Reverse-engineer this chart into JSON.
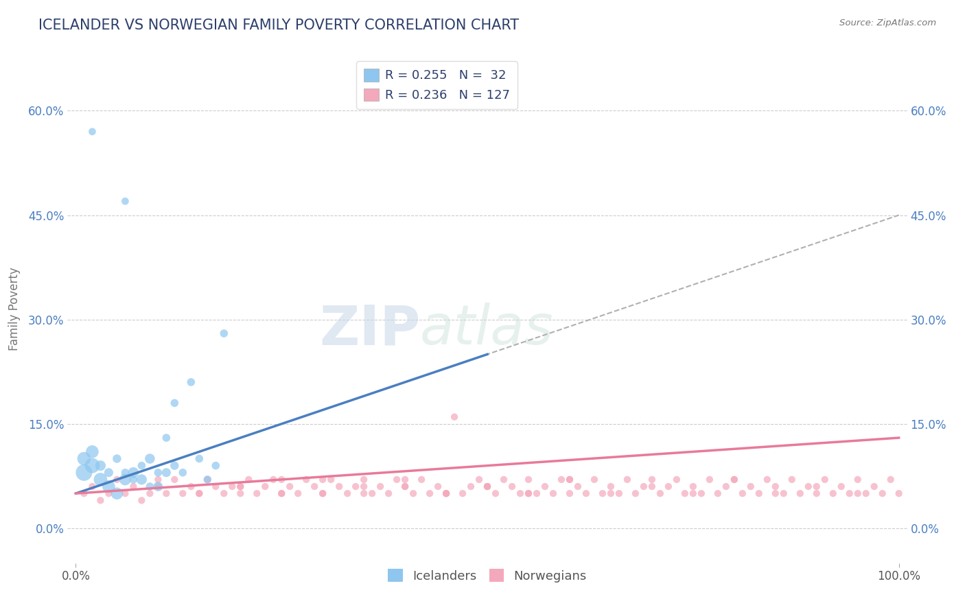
{
  "title": "ICELANDER VS NORWEGIAN FAMILY POVERTY CORRELATION CHART",
  "source": "Source: ZipAtlas.com",
  "ylabel": "Family Poverty",
  "ytick_labels": [
    "0.0%",
    "15.0%",
    "30.0%",
    "45.0%",
    "60.0%"
  ],
  "ytick_values": [
    0,
    15,
    30,
    45,
    60
  ],
  "xlim": [
    -1,
    101
  ],
  "ylim": [
    -5,
    68
  ],
  "watermark_zip": "ZIP",
  "watermark_atlas": "atlas",
  "legend_label1": "R = 0.255   N =  32",
  "legend_label2": "R = 0.236   N = 127",
  "icelandic_color": "#8ec6ef",
  "norwegian_color": "#f4a8bc",
  "icelandic_line_color": "#4a7fc1",
  "norwegian_line_color": "#e87a9a",
  "trend_line_color": "#b0b0b0",
  "background_color": "#ffffff",
  "grid_color": "#cccccc",
  "title_color": "#2c3e6b",
  "icelanders_label": "Icelanders",
  "norwegians_label": "Norwegians",
  "icelandic_scatter_x": [
    2,
    6,
    1,
    2,
    3,
    4,
    5,
    6,
    7,
    8,
    9,
    10,
    11,
    12,
    1,
    2,
    3,
    4,
    5,
    6,
    7,
    8,
    9,
    10,
    11,
    12,
    13,
    14,
    15,
    16,
    17,
    18
  ],
  "icelandic_scatter_y": [
    57,
    47,
    10,
    11,
    9,
    8,
    10,
    8,
    7,
    9,
    6,
    8,
    13,
    18,
    8,
    9,
    7,
    6,
    5,
    7,
    8,
    7,
    10,
    6,
    8,
    9,
    8,
    21,
    10,
    7,
    9,
    28
  ],
  "icelandic_scatter_s": [
    60,
    60,
    200,
    180,
    120,
    90,
    80,
    70,
    70,
    70,
    70,
    70,
    70,
    70,
    300,
    250,
    200,
    180,
    160,
    150,
    130,
    120,
    110,
    100,
    90,
    80,
    70,
    70,
    70,
    70,
    70,
    70
  ],
  "norwegian_scatter_x": [
    1,
    2,
    3,
    4,
    5,
    6,
    7,
    8,
    9,
    10,
    11,
    12,
    13,
    14,
    15,
    16,
    17,
    18,
    19,
    20,
    21,
    22,
    23,
    24,
    25,
    26,
    27,
    28,
    29,
    30,
    31,
    32,
    33,
    34,
    35,
    36,
    37,
    38,
    39,
    40,
    41,
    42,
    43,
    44,
    45,
    46,
    47,
    48,
    49,
    50,
    51,
    52,
    53,
    54,
    55,
    56,
    57,
    58,
    59,
    60,
    61,
    62,
    63,
    64,
    65,
    66,
    67,
    68,
    69,
    70,
    71,
    72,
    73,
    74,
    75,
    76,
    77,
    78,
    79,
    80,
    81,
    82,
    83,
    84,
    85,
    86,
    87,
    88,
    89,
    90,
    91,
    92,
    93,
    94,
    95,
    96,
    97,
    98,
    99,
    100,
    20,
    25,
    30,
    35,
    40,
    45,
    50,
    55,
    60,
    65,
    70,
    75,
    80,
    85,
    90,
    95,
    10,
    15,
    20,
    25,
    30,
    35,
    40,
    45,
    50,
    55,
    60
  ],
  "norwegian_scatter_y": [
    5,
    6,
    4,
    5,
    7,
    5,
    6,
    4,
    5,
    6,
    5,
    7,
    5,
    6,
    5,
    7,
    6,
    5,
    6,
    5,
    7,
    5,
    6,
    7,
    5,
    6,
    5,
    7,
    6,
    5,
    7,
    6,
    5,
    6,
    7,
    5,
    6,
    5,
    7,
    6,
    5,
    7,
    5,
    6,
    5,
    16,
    5,
    6,
    7,
    6,
    5,
    7,
    6,
    5,
    7,
    5,
    6,
    5,
    7,
    5,
    6,
    5,
    7,
    5,
    6,
    5,
    7,
    5,
    6,
    7,
    5,
    6,
    7,
    5,
    6,
    5,
    7,
    5,
    6,
    7,
    5,
    6,
    5,
    7,
    6,
    5,
    7,
    5,
    6,
    5,
    7,
    5,
    6,
    5,
    7,
    5,
    6,
    5,
    7,
    5,
    6,
    7,
    5,
    6,
    7,
    5,
    6,
    5,
    7,
    5,
    6,
    5,
    7,
    5,
    6,
    5,
    7,
    5,
    6,
    5,
    7,
    5,
    6,
    5,
    6,
    5,
    7
  ],
  "icelandic_trend_x0": 0,
  "icelandic_trend_y0": 5,
  "icelandic_trend_x1": 50,
  "icelandic_trend_y1": 25,
  "norwegian_trend_x0": 0,
  "norwegian_trend_y0": 5,
  "norwegian_trend_x1": 100,
  "norwegian_trend_y1": 13,
  "combined_trend_x0": 0,
  "combined_trend_y0": 5,
  "combined_trend_x1": 100,
  "combined_trend_y1": 45
}
